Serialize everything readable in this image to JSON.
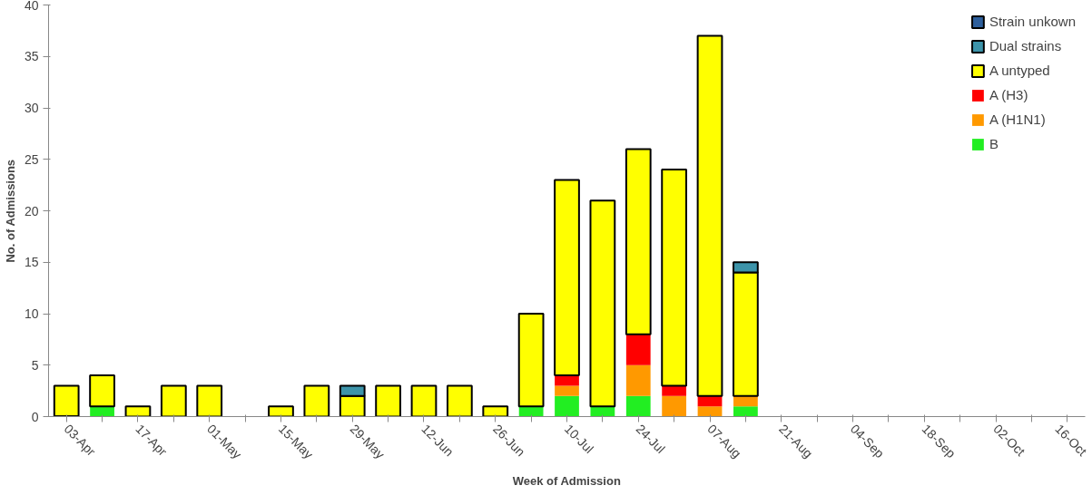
{
  "chart_data": {
    "type": "bar",
    "stacked": true,
    "xlabel": "Week of Admission",
    "ylabel": "No. of Admissions",
    "categories": [
      "03-Apr",
      null,
      "17-Apr",
      null,
      "01-May",
      null,
      "15-May",
      null,
      "29-May",
      null,
      "12-Jun",
      null,
      "26-Jun",
      null,
      "10-Jul",
      null,
      "24-Jul",
      null,
      "07-Aug",
      null,
      "21-Aug",
      null,
      "04-Sep",
      null,
      "18-Sep",
      null,
      "02-Oct",
      null,
      "16-Oct"
    ],
    "series": [
      {
        "name": "B",
        "color": "#22ee22",
        "values": [
          0,
          1,
          0,
          0,
          0,
          0,
          0,
          0,
          0,
          0,
          0,
          0,
          0,
          1,
          2,
          1,
          2,
          0,
          0,
          1,
          0,
          0,
          0,
          0,
          0,
          0,
          0,
          0,
          0
        ]
      },
      {
        "name": "A (H1N1)",
        "color": "#ff9900",
        "values": [
          0,
          0,
          0,
          0,
          0,
          0,
          0,
          0,
          0,
          0,
          0,
          0,
          0,
          0,
          1,
          0,
          3,
          2,
          1,
          1,
          0,
          0,
          0,
          0,
          0,
          0,
          0,
          0,
          0
        ]
      },
      {
        "name": "A (H3)",
        "color": "#ff0000",
        "values": [
          0,
          0,
          0,
          0,
          0,
          0,
          0,
          0,
          0,
          0,
          0,
          0,
          0,
          0,
          1,
          0,
          3,
          1,
          1,
          0,
          0,
          0,
          0,
          0,
          0,
          0,
          0,
          0,
          0
        ]
      },
      {
        "name": "A untyped",
        "color": "#ffff00",
        "values": [
          3,
          3,
          1,
          3,
          3,
          0,
          1,
          3,
          2,
          3,
          3,
          3,
          1,
          9,
          19,
          20,
          18,
          21,
          35,
          12,
          0,
          0,
          0,
          0,
          0,
          0,
          0,
          0,
          0
        ]
      },
      {
        "name": "Dual strains",
        "color": "#3d94aa",
        "values": [
          0,
          0,
          0,
          0,
          0,
          0,
          0,
          0,
          1,
          0,
          0,
          0,
          0,
          0,
          0,
          0,
          0,
          0,
          0,
          1,
          0,
          0,
          0,
          0,
          0,
          0,
          0,
          0,
          0
        ]
      },
      {
        "name": "Strain unkown",
        "color": "#2e5f9c",
        "values": [
          0,
          0,
          0,
          0,
          0,
          0,
          0,
          0,
          0,
          0,
          0,
          0,
          0,
          0,
          0,
          0,
          0,
          0,
          0,
          0,
          0,
          0,
          0,
          0,
          0,
          0,
          0,
          0,
          0
        ]
      }
    ],
    "ylim": [
      0,
      40
    ],
    "yticks": [
      0,
      5,
      10,
      15,
      20,
      25,
      30,
      35,
      40
    ],
    "grid": false,
    "legend": "right"
  }
}
